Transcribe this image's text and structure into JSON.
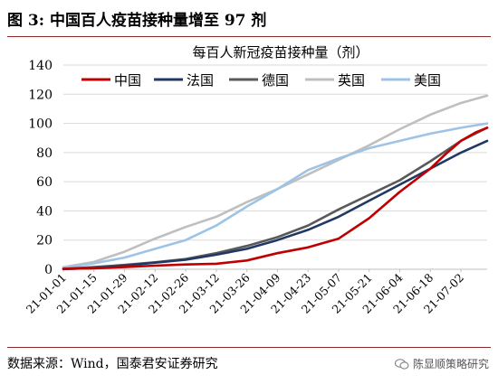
{
  "figure": {
    "title": "图 3:  中国百人疫苗接种量增至 97 剂",
    "source": "数据来源：Wind，国泰君安证券研究",
    "watermark": "陈显顺策略研究"
  },
  "chart_data": {
    "type": "line",
    "title": "每百人新冠疫苗接种量（剂）",
    "xlabel": "",
    "ylabel": "",
    "ylim": [
      0,
      140
    ],
    "yticks": [
      0,
      20,
      40,
      60,
      80,
      100,
      120,
      140
    ],
    "xlim": [
      "2021-01-01",
      "2021-07-14"
    ],
    "xticks": [
      "21-01-01",
      "21-01-15",
      "21-01-29",
      "21-02-12",
      "21-02-26",
      "21-03-12",
      "21-03-26",
      "21-04-09",
      "21-04-23",
      "21-05-07",
      "21-05-21",
      "21-06-04",
      "21-06-18",
      "21-07-02"
    ],
    "grid": true,
    "legend": "top",
    "series": [
      {
        "name": "中国",
        "color": "#c00000",
        "points": [
          [
            "2021-01-01",
            0.3
          ],
          [
            "2021-01-15",
            0.7
          ],
          [
            "2021-01-29",
            1.5
          ],
          [
            "2021-02-12",
            2.5
          ],
          [
            "2021-02-26",
            3.3
          ],
          [
            "2021-03-12",
            3.8
          ],
          [
            "2021-03-26",
            6.0
          ],
          [
            "2021-04-09",
            11.0
          ],
          [
            "2021-04-23",
            15.0
          ],
          [
            "2021-05-07",
            21.0
          ],
          [
            "2021-05-21",
            35.0
          ],
          [
            "2021-06-04",
            53.0
          ],
          [
            "2021-06-18",
            69.0
          ],
          [
            "2021-06-25",
            79.0
          ],
          [
            "2021-07-02",
            88.0
          ],
          [
            "2021-07-09",
            94.0
          ],
          [
            "2021-07-14",
            97.0
          ]
        ]
      },
      {
        "name": "法国",
        "color": "#203864",
        "points": [
          [
            "2021-01-01",
            0.1
          ],
          [
            "2021-01-15",
            0.8
          ],
          [
            "2021-01-29",
            2.5
          ],
          [
            "2021-02-12",
            4.5
          ],
          [
            "2021-02-26",
            6.5
          ],
          [
            "2021-03-12",
            10.0
          ],
          [
            "2021-03-26",
            14.0
          ],
          [
            "2021-04-09",
            20.0
          ],
          [
            "2021-04-23",
            27.0
          ],
          [
            "2021-05-07",
            36.0
          ],
          [
            "2021-05-21",
            47.0
          ],
          [
            "2021-06-04",
            58.0
          ],
          [
            "2021-06-18",
            69.0
          ],
          [
            "2021-07-02",
            80.0
          ],
          [
            "2021-07-14",
            88.0
          ]
        ]
      },
      {
        "name": "德国",
        "color": "#595959",
        "points": [
          [
            "2021-01-01",
            0.3
          ],
          [
            "2021-01-15",
            1.5
          ],
          [
            "2021-01-29",
            3.0
          ],
          [
            "2021-02-12",
            4.8
          ],
          [
            "2021-02-26",
            7.0
          ],
          [
            "2021-03-12",
            11.0
          ],
          [
            "2021-03-26",
            16.0
          ],
          [
            "2021-04-09",
            22.0
          ],
          [
            "2021-04-23",
            30.0
          ],
          [
            "2021-05-07",
            41.0
          ],
          [
            "2021-05-21",
            51.0
          ],
          [
            "2021-06-04",
            61.0
          ],
          [
            "2021-06-18",
            74.0
          ],
          [
            "2021-07-02",
            88.0
          ],
          [
            "2021-07-14",
            97.0
          ]
        ]
      },
      {
        "name": "英国",
        "color": "#bfbfbf",
        "points": [
          [
            "2021-01-01",
            1.5
          ],
          [
            "2021-01-15",
            5.0
          ],
          [
            "2021-01-29",
            12.0
          ],
          [
            "2021-02-12",
            21.0
          ],
          [
            "2021-02-26",
            29.0
          ],
          [
            "2021-03-12",
            36.0
          ],
          [
            "2021-03-26",
            46.0
          ],
          [
            "2021-04-09",
            55.0
          ],
          [
            "2021-04-23",
            65.0
          ],
          [
            "2021-05-07",
            75.0
          ],
          [
            "2021-05-21",
            85.0
          ],
          [
            "2021-06-04",
            96.0
          ],
          [
            "2021-06-18",
            106.0
          ],
          [
            "2021-07-02",
            114.0
          ],
          [
            "2021-07-14",
            119.0
          ]
        ]
      },
      {
        "name": "美国",
        "color": "#9dc3e6",
        "points": [
          [
            "2021-01-01",
            1.0
          ],
          [
            "2021-01-15",
            4.0
          ],
          [
            "2021-01-29",
            8.0
          ],
          [
            "2021-02-12",
            14.0
          ],
          [
            "2021-02-26",
            20.0
          ],
          [
            "2021-03-12",
            30.0
          ],
          [
            "2021-03-26",
            43.0
          ],
          [
            "2021-04-09",
            55.0
          ],
          [
            "2021-04-23",
            68.0
          ],
          [
            "2021-05-07",
            76.0
          ],
          [
            "2021-05-21",
            83.0
          ],
          [
            "2021-06-04",
            88.0
          ],
          [
            "2021-06-18",
            93.0
          ],
          [
            "2021-07-02",
            97.0
          ],
          [
            "2021-07-14",
            100.0
          ]
        ]
      }
    ]
  }
}
